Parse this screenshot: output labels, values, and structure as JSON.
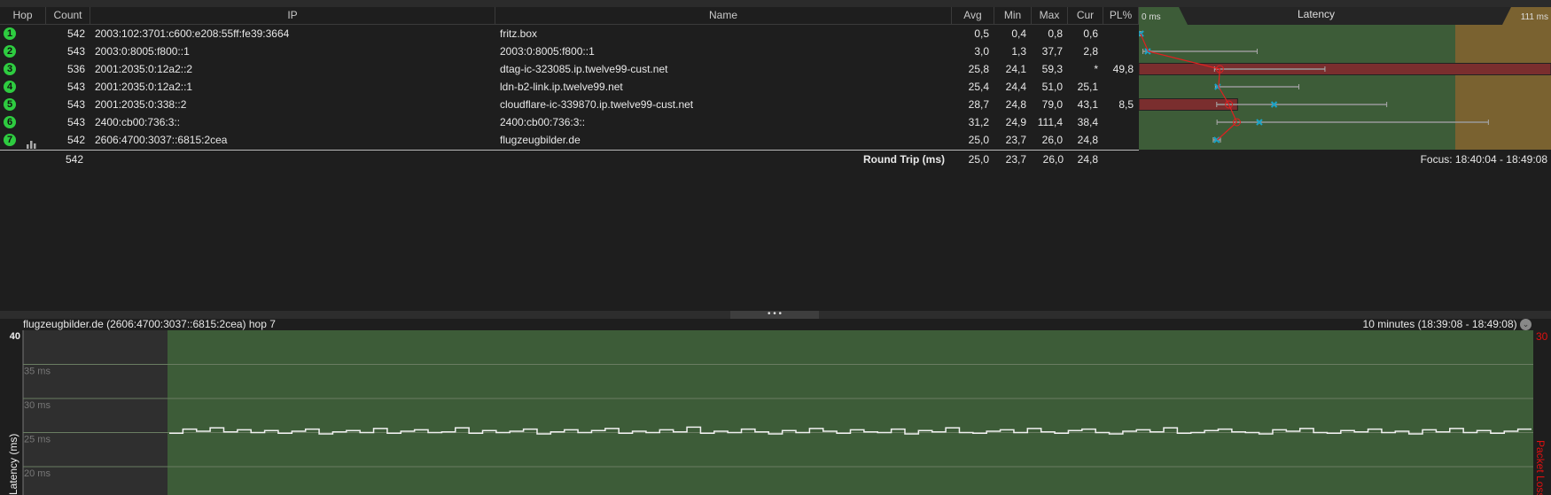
{
  "columns": [
    "Hop",
    "Count",
    "IP",
    "Name",
    "Avg",
    "Min",
    "Max",
    "Cur",
    "PL%"
  ],
  "latency_header": {
    "title": "Latency",
    "min_label": "0 ms",
    "max_label": "111 ms"
  },
  "hops": [
    {
      "hop": "1",
      "count": "542",
      "ip": "2003:102:3701:c600:e208:55ff:fe39:3664",
      "name": "fritz.box",
      "avg": "0,5",
      "min": "0,4",
      "max": "0,8",
      "cur": "0,6",
      "pl": ""
    },
    {
      "hop": "2",
      "count": "543",
      "ip": "2003:0:8005:f800::1",
      "name": "2003:0:8005:f800::1",
      "avg": "3,0",
      "min": "1,3",
      "max": "37,7",
      "cur": "2,8",
      "pl": ""
    },
    {
      "hop": "3",
      "count": "536",
      "ip": "2001:2035:0:12a2::2",
      "name": "dtag-ic-323085.ip.twelve99-cust.net",
      "avg": "25,8",
      "min": "24,1",
      "max": "59,3",
      "cur": "*",
      "pl": "49,8"
    },
    {
      "hop": "4",
      "count": "543",
      "ip": "2001:2035:0:12a2::1",
      "name": "ldn-b2-link.ip.twelve99.net",
      "avg": "25,4",
      "min": "24,4",
      "max": "51,0",
      "cur": "25,1",
      "pl": ""
    },
    {
      "hop": "5",
      "count": "543",
      "ip": "2001:2035:0:338::2",
      "name": "cloudflare-ic-339870.ip.twelve99-cust.net",
      "avg": "28,7",
      "min": "24,8",
      "max": "79,0",
      "cur": "43,1",
      "pl": "8,5"
    },
    {
      "hop": "6",
      "count": "543",
      "ip": "2400:cb00:736:3::",
      "name": "2400:cb00:736:3::",
      "avg": "31,2",
      "min": "24,9",
      "max": "111,4",
      "cur": "38,4",
      "pl": ""
    },
    {
      "hop": "7",
      "count": "542",
      "ip": "2606:4700:3037::6815:2cea",
      "name": "flugzeugbilder.de",
      "avg": "25,0",
      "min": "23,7",
      "max": "26,0",
      "cur": "24,8",
      "pl": "",
      "icon": "bar-chart-icon"
    }
  ],
  "summary": {
    "count": "542",
    "label": "Round Trip (ms)",
    "avg": "25,0",
    "min": "23,7",
    "max": "26,0",
    "cur": "24,8",
    "focus": "Focus: 18:40:04 - 18:49:08"
  },
  "graph": {
    "title": "flugzeugbilder.de (2606:4700:3037::6815:2cea) hop 7",
    "range": "10 minutes (18:39:08 - 18:49:08)"
  },
  "colors": {
    "good": "#3d5c38",
    "warn": "#7a6230",
    "loss": "#7a2e2e",
    "avg_line": "#e02020",
    "cur_marker": "#1aa3c8"
  },
  "chart_data": {
    "type": "line",
    "ylabel": "Latency (ms)",
    "y2label": "Packet Loss %",
    "ylim": [
      15,
      40
    ],
    "y2_max_label": "30",
    "top_label": "40",
    "yticks": [
      "35 ms",
      "30 ms",
      "25 ms",
      "20 ms"
    ],
    "ytick_values": [
      35,
      30,
      25,
      20
    ],
    "values": [
      24.9,
      25.5,
      25.2,
      25.7,
      25.1,
      25.4,
      25.0,
      25.3,
      24.9,
      25.2,
      25.5,
      24.8,
      25.1,
      25.3,
      25.0,
      25.6,
      24.9,
      25.2,
      25.4,
      25.0,
      25.1,
      25.7,
      24.9,
      25.3,
      25.0,
      25.2,
      25.5,
      24.8,
      25.1,
      25.4,
      25.0,
      25.3,
      25.6,
      24.9,
      25.2,
      25.0,
      25.4,
      25.1,
      25.8,
      24.9,
      25.2,
      25.0,
      25.5,
      25.1,
      24.8,
      25.3,
      25.0,
      25.6,
      25.2,
      24.9,
      25.4,
      25.1,
      25.0,
      25.5,
      24.8,
      25.3,
      25.1,
      25.7,
      25.0,
      24.9,
      25.2,
      25.4,
      25.0,
      25.6,
      25.1,
      24.9,
      25.3,
      25.5,
      25.0,
      24.8,
      25.2,
      25.4,
      25.1,
      25.7,
      24.9,
      25.0,
      25.3,
      25.5,
      25.1,
      25.0,
      24.8,
      25.4,
      25.2,
      25.6,
      25.0,
      24.9,
      25.3,
      25.1,
      25.5,
      25.0,
      25.2,
      24.8,
      25.4,
      25.1,
      25.6,
      25.0,
      25.3,
      24.9,
      25.2,
      25.5
    ]
  }
}
